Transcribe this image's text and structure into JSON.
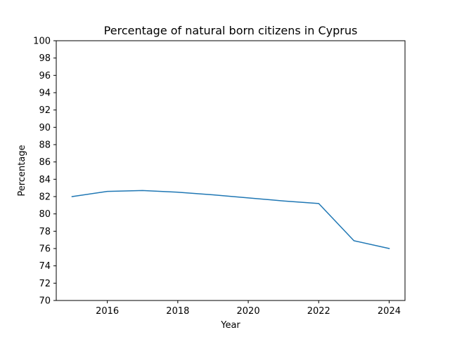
{
  "chart_data": {
    "type": "line",
    "title": "Percentage of natural born citizens in Cyprus",
    "xlabel": "Year",
    "ylabel": "Percentage",
    "xlim": [
      2014.55,
      2024.45
    ],
    "ylim": [
      70,
      100
    ],
    "xticks": [
      "2016",
      "2018",
      "2020",
      "2022",
      "2024"
    ],
    "yticks": [
      "70",
      "72",
      "74",
      "76",
      "78",
      "80",
      "82",
      "84",
      "86",
      "88",
      "90",
      "92",
      "94",
      "96",
      "98",
      "100"
    ],
    "grid": false,
    "x": [
      2015,
      2016,
      2017,
      2018,
      2019,
      2020,
      2021,
      2022,
      2023,
      2024
    ],
    "series": [
      {
        "color": "#1f77b4",
        "values": [
          82.0,
          82.6,
          82.7,
          82.5,
          82.2,
          81.85,
          81.5,
          81.2,
          76.9,
          76.0
        ]
      }
    ]
  }
}
